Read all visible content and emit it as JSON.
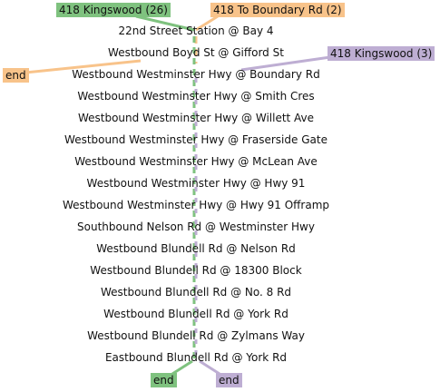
{
  "colors": {
    "green": "#7fc27f",
    "orange": "#f8c38a",
    "purple": "#beaed3"
  },
  "routes": [
    {
      "label": "418 Kingswood (26)",
      "color": "green"
    },
    {
      "label": "418 To Boundary Rd (2)",
      "color": "orange"
    },
    {
      "label": "418 Kingswood (3)",
      "color": "purple"
    }
  ],
  "ends": {
    "orange": "end",
    "green": "end",
    "purple": "end"
  },
  "stops": [
    "22nd Street Station @ Bay 4",
    "Westbound Boyd St @ Gifford St",
    "Westbound Westminster Hwy @ Boundary Rd",
    "Westbound Westminster Hwy @ Smith Cres",
    "Westbound Westminster Hwy @ Willett Ave",
    "Westbound Westminster Hwy @ Fraserside Gate",
    "Westbound Westminster Hwy @ McLean Ave",
    "Westbound Westminster Hwy @ Hwy 91",
    "Westbound Westminster Hwy @ Hwy 91 Offramp",
    "Southbound Nelson Rd @ Westminster Hwy",
    "Westbound Blundell Rd @ Nelson Rd",
    "Westbound Blundell Rd @ 18300 Block",
    "Westbound Blundell Rd @ No. 8 Rd",
    "Westbound Blundell Rd @ York Rd",
    "Westbound Blundell Rd @ Zylmans Way",
    "Eastbound Blundell Rd @ York Rd"
  ]
}
